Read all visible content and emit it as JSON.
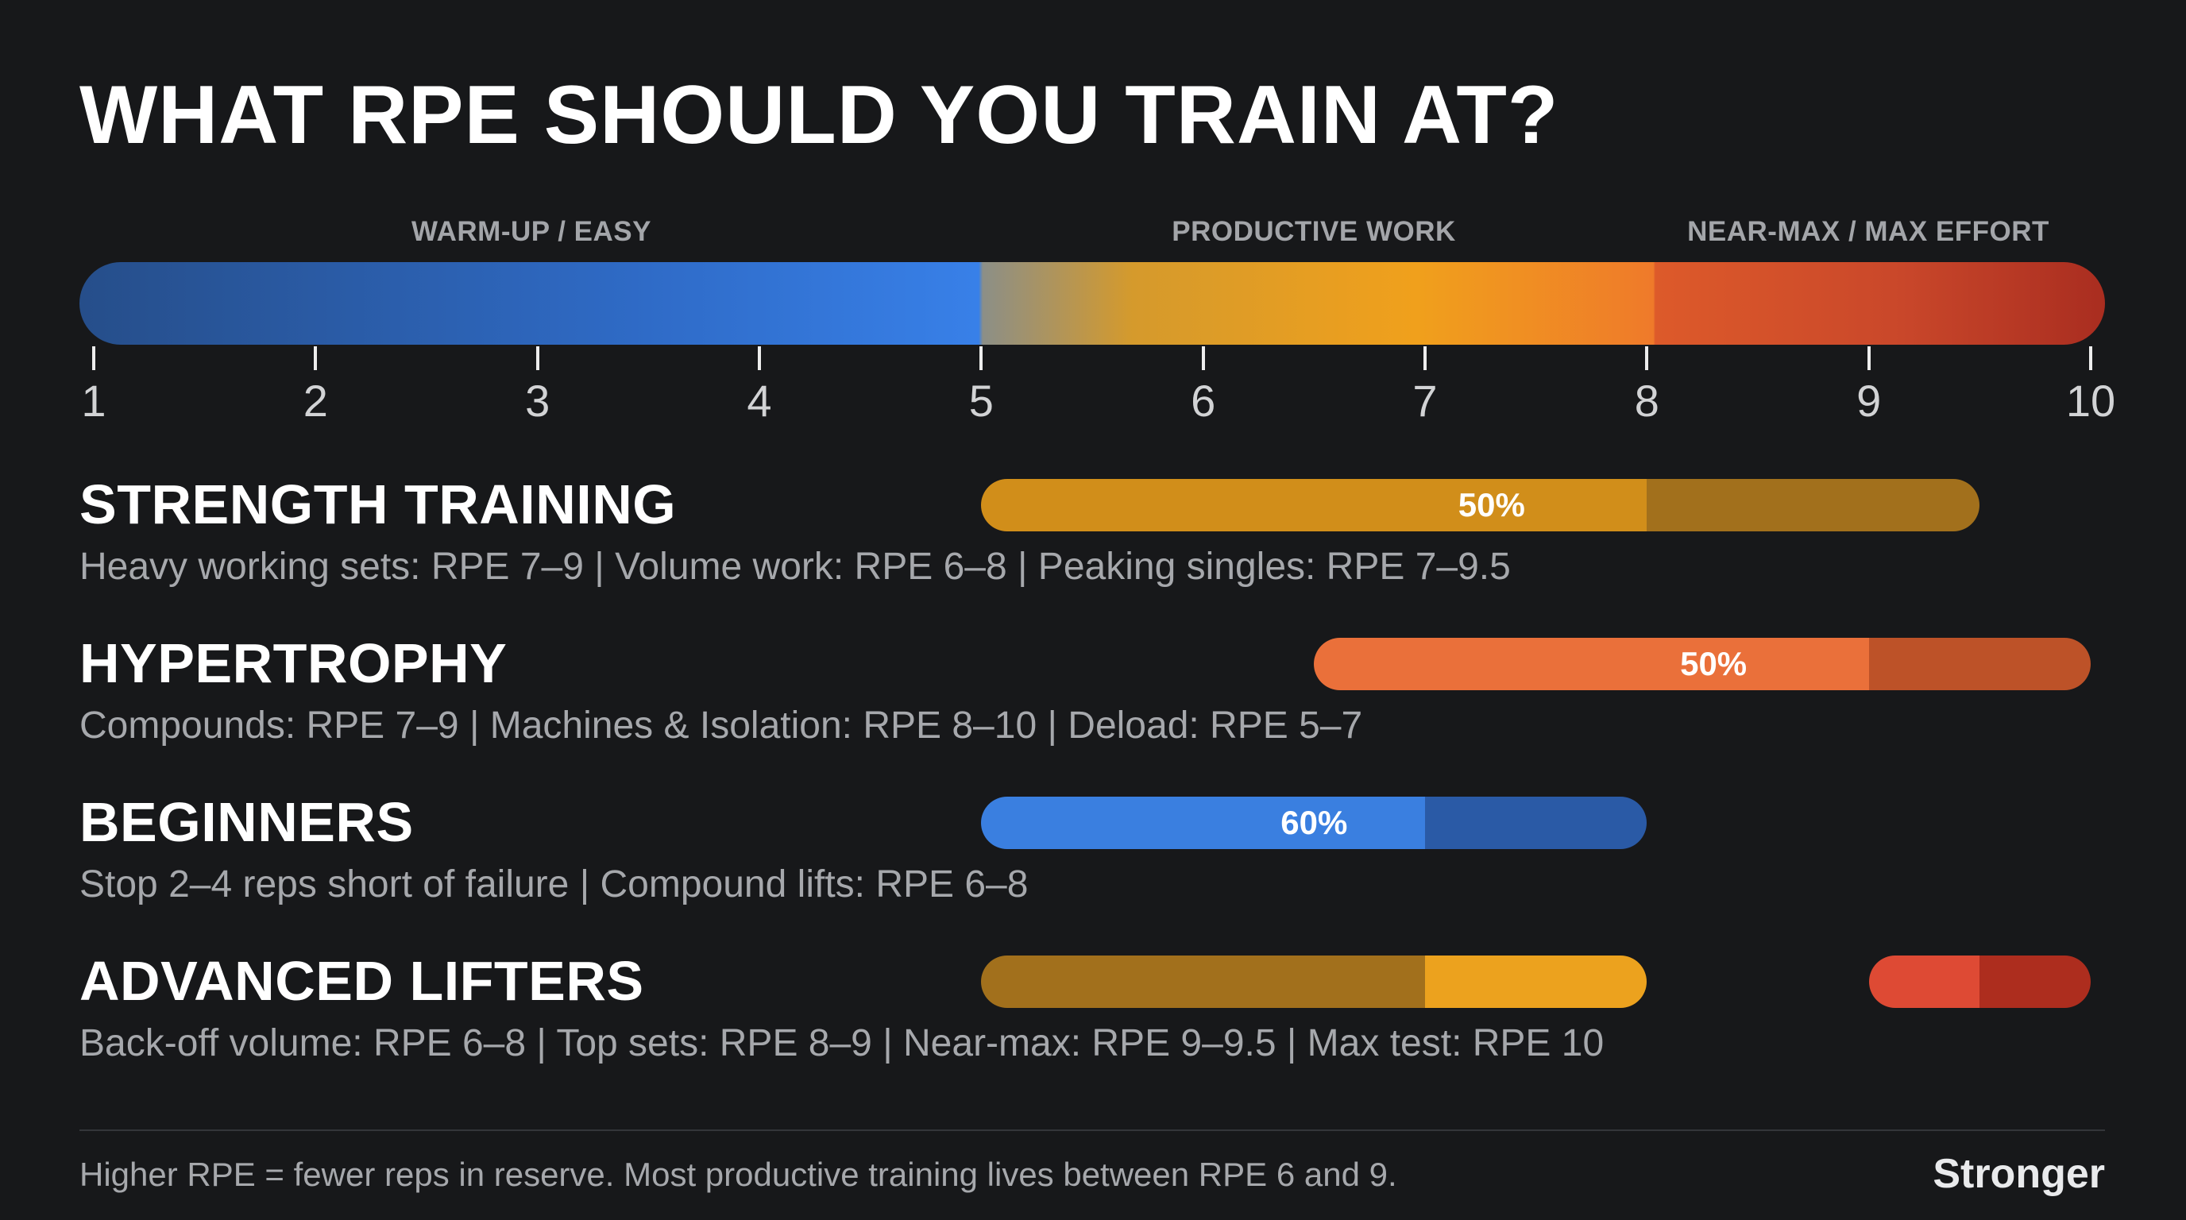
{
  "chart_data": {
    "type": "bar",
    "title": "WHAT RPE SHOULD YOU TRAIN AT?",
    "axis": {
      "min": 1,
      "max": 10,
      "ticks": [
        "1",
        "2",
        "3",
        "4",
        "5",
        "6",
        "7",
        "8",
        "9",
        "10"
      ]
    },
    "zones": [
      {
        "label": "WARM-UP / EASY",
        "from": 1,
        "to": 5,
        "color": "#3880e8"
      },
      {
        "label": "PRODUCTIVE WORK",
        "from": 5,
        "to": 8,
        "color": "#f0a01c"
      },
      {
        "label": "NEAR-MAX / MAX EFFORT",
        "from": 8,
        "to": 10,
        "color": "#c9472a"
      }
    ],
    "categories": [
      {
        "name": "STRENGTH TRAINING",
        "subtitle": "Heavy working sets: RPE 7–9 | Volume work: RPE 6–8 | Peaking singles: RPE 7–9.5",
        "percent_label": "50%",
        "label_rpe": 7.3,
        "segments": [
          {
            "from": 5,
            "to": 8,
            "color": "#d18e1a"
          },
          {
            "from": 8,
            "to": 9.5,
            "color": "#a2701c"
          }
        ]
      },
      {
        "name": "HYPERTROPHY",
        "subtitle": "Compounds: RPE 7–9 | Machines & Isolation: RPE 8–10 | Deload: RPE 5–7",
        "percent_label": "50%",
        "label_rpe": 8.3,
        "segments": [
          {
            "from": 6.5,
            "to": 9,
            "color": "#ea703a"
          },
          {
            "from": 9,
            "to": 10,
            "color": "#bd5228"
          }
        ]
      },
      {
        "name": "BEGINNERS",
        "subtitle": "Stop 2–4 reps short of failure | Compound lifts: RPE 6–8",
        "percent_label": "60%",
        "label_rpe": 6.5,
        "segments": [
          {
            "from": 5,
            "to": 7,
            "color": "#3a7fe0"
          },
          {
            "from": 7,
            "to": 8,
            "color": "#2a5aa6"
          }
        ]
      },
      {
        "name": "ADVANCED LIFTERS",
        "subtitle": "Back-off volume: RPE 6–8 | Top sets: RPE 8–9 | Near-max: RPE 9–9.5 | Max test: RPE 10",
        "percent_label": "",
        "segments": [
          {
            "from": 5,
            "to": 7,
            "color": "#a2701c"
          },
          {
            "from": 7,
            "to": 8,
            "color": "#eca21e"
          },
          {
            "from": 9,
            "to": 9.5,
            "color": "#de4a34"
          },
          {
            "from": 9.5,
            "to": 10,
            "color": "#ad2d1e"
          }
        ]
      }
    ]
  },
  "footer": {
    "note": "Higher RPE = fewer reps in reserve. Most productive training lives between RPE 6 and 9.",
    "brand": "Stronger"
  }
}
